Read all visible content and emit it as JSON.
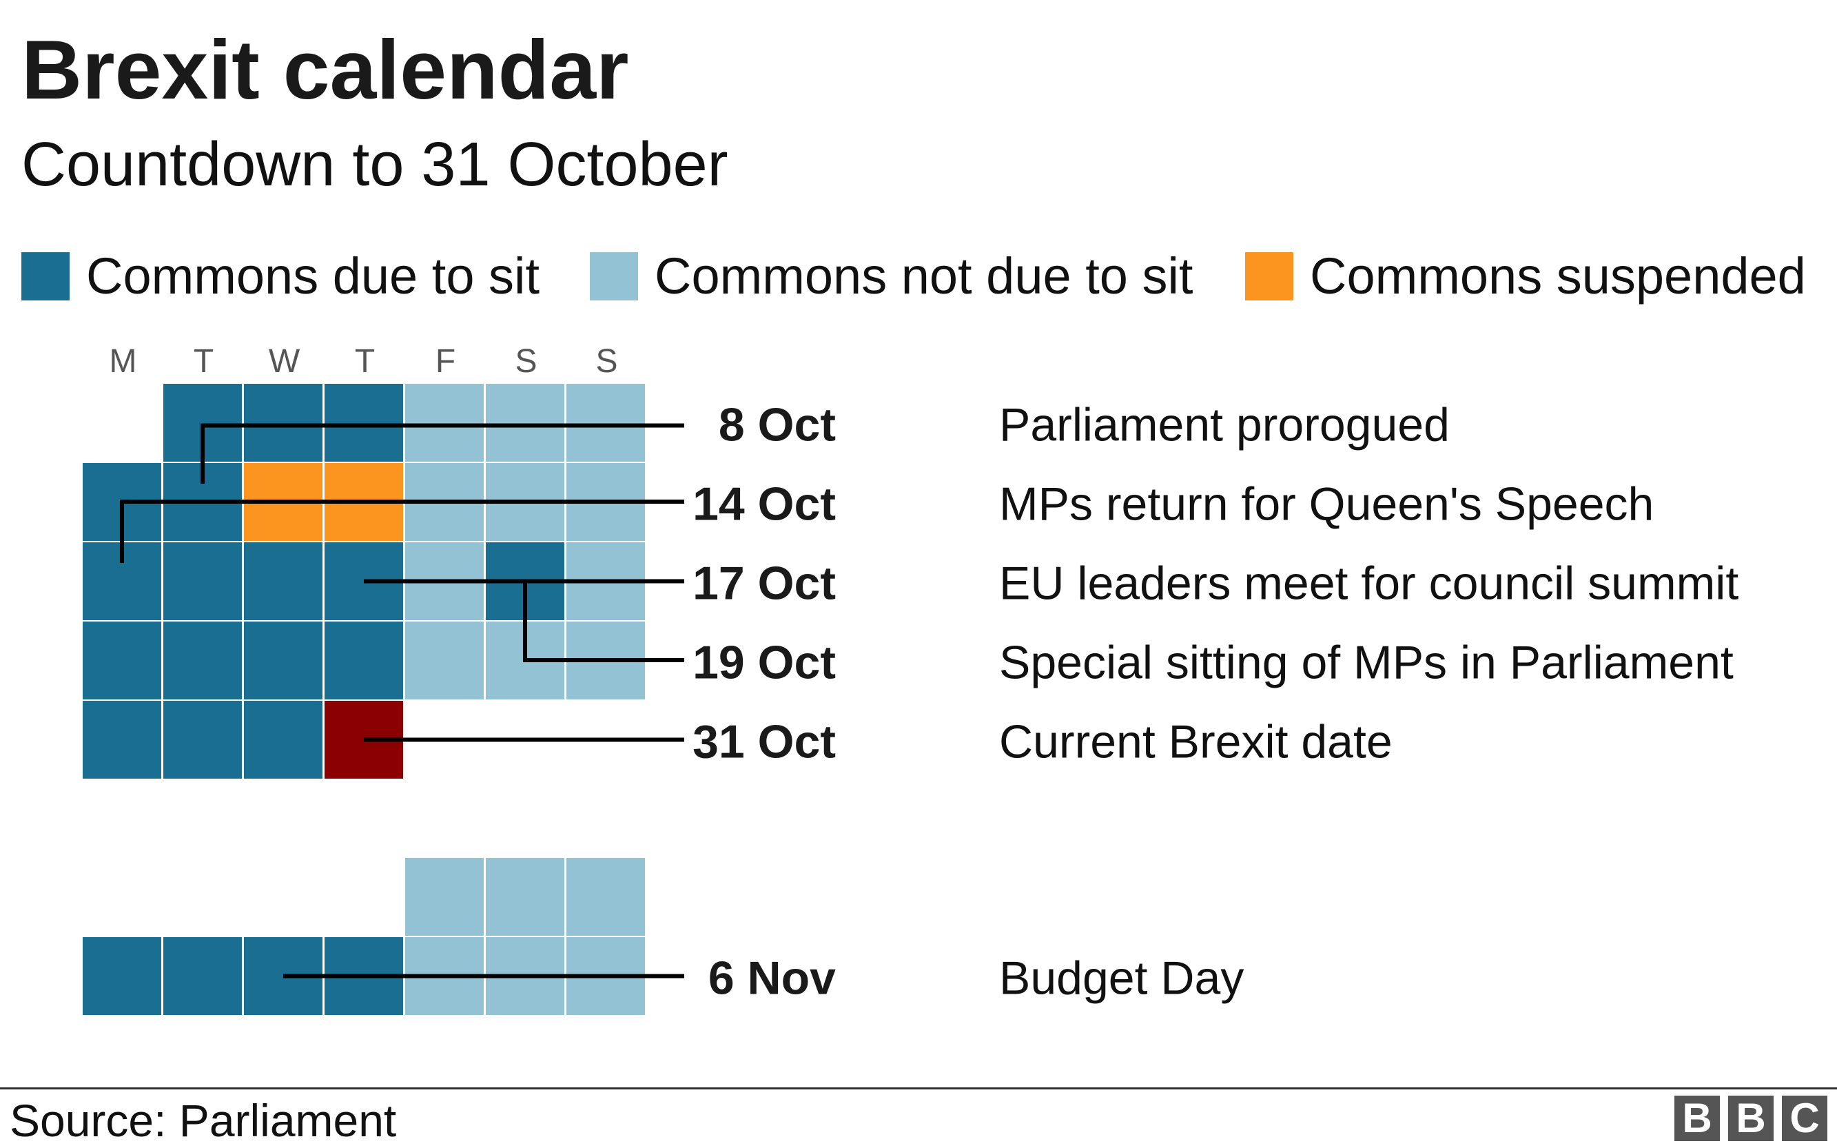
{
  "title": "Brexit calendar",
  "subtitle": "Countdown to 31 October",
  "legend": [
    {
      "label": "Commons due to sit",
      "color": "#1a6e92"
    },
    {
      "label": "Commons not due to sit",
      "color": "#92c2d3"
    },
    {
      "label": "Commons suspended",
      "color": "#fc951f"
    }
  ],
  "colors": {
    "sit": "#1a6e92",
    "not_sit": "#92c2d3",
    "suspended": "#fc951f",
    "brexit": "#8b0000",
    "gridline": "#ffffff",
    "leader": "#000000"
  },
  "day_headers": [
    "M",
    "T",
    "W",
    "T",
    "F",
    "S",
    "S"
  ],
  "chart_data": {
    "type": "calendar",
    "title": "Brexit calendar",
    "subtitle": "Countdown to 31 October",
    "weeks": [
      {
        "days": [
          "none",
          "sit",
          "sit",
          "sit",
          "not_sit",
          "not_sit",
          "not_sit"
        ]
      },
      {
        "days": [
          "sit",
          "sit",
          "suspended",
          "suspended",
          "not_sit",
          "not_sit",
          "not_sit"
        ]
      },
      {
        "days": [
          "sit",
          "sit",
          "sit",
          "sit",
          "not_sit",
          "sit",
          "not_sit"
        ]
      },
      {
        "days": [
          "sit",
          "sit",
          "sit",
          "sit",
          "not_sit",
          "not_sit",
          "not_sit"
        ]
      },
      {
        "days": [
          "sit",
          "sit",
          "sit",
          "brexit",
          "none",
          "none",
          "none"
        ]
      },
      {
        "days": [
          "none",
          "none",
          "none",
          "none",
          "not_sit",
          "not_sit",
          "not_sit"
        ]
      },
      {
        "days": [
          "sit",
          "sit",
          "sit",
          "sit",
          "not_sit",
          "not_sit",
          "not_sit"
        ]
      }
    ],
    "events": [
      {
        "date": "8 Oct",
        "label": "Parliament prorogued",
        "week": 0,
        "day": 1
      },
      {
        "date": "14 Oct",
        "label": "MPs return for Queen's Speech",
        "week": 1,
        "day": 0
      },
      {
        "date": "17 Oct",
        "label": "EU leaders meet for council summit",
        "week": 2,
        "day": 3
      },
      {
        "date": "19 Oct",
        "label": "Special sitting of MPs in Parliament",
        "week": 2,
        "day": 5
      },
      {
        "date": "31 Oct",
        "label": "Current Brexit date",
        "week": 4,
        "day": 3
      },
      {
        "date": "6 Nov",
        "label": "Budget Day",
        "week": 6,
        "day": 2
      }
    ]
  },
  "footer": {
    "source": "Source: Parliament",
    "logo_letters": [
      "B",
      "B",
      "C"
    ]
  }
}
